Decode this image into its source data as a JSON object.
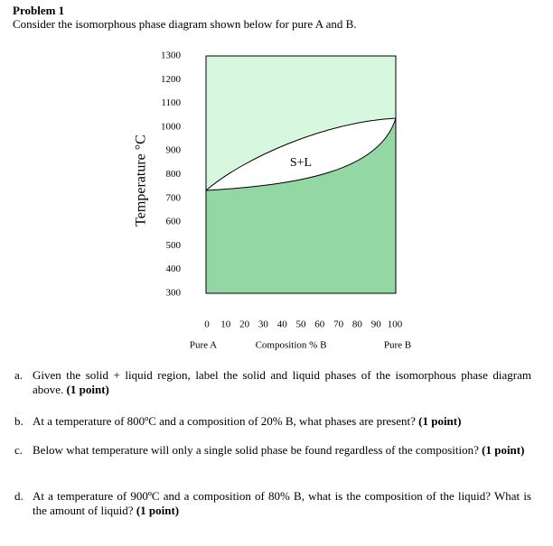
{
  "problem": {
    "title": "Problem 1",
    "intro": "Consider the isomorphous phase diagram shown below for pure A and B."
  },
  "figure": {
    "y_label": "Temperature °C",
    "y_ticks": [
      1300,
      1200,
      1100,
      1000,
      900,
      800,
      700,
      600,
      500,
      400,
      300
    ],
    "x_ticks": [
      0,
      10,
      20,
      30,
      40,
      50,
      60,
      70,
      80,
      90,
      100
    ],
    "x_labels": [
      "Pure A",
      "Composition % B",
      "Pure B"
    ],
    "region_label": "S+L"
  },
  "questions": [
    {
      "letter": "a.",
      "text": "Given the solid + liquid region, label the solid and liquid phases of the isomorphous phase diagram above.",
      "points": "(1 point)"
    },
    {
      "letter": "b.",
      "text": "At a temperature of 800ºC and a composition of 20% B, what phases are present?",
      "points": "(1 point)"
    },
    {
      "letter": "c.",
      "text": "Below what temperature will only a single solid phase be found regardless of the composition?",
      "points": "(1 point)"
    },
    {
      "letter": "d.",
      "text": "At a temperature of 900ºC and a composition of 80% B, what is the composition of the liquid? What is the amount of liquid?",
      "points": "(1 point)"
    }
  ]
}
